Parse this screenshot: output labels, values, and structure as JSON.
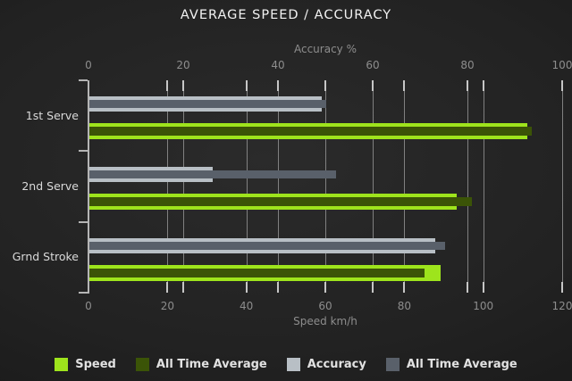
{
  "title": "AVERAGE SPEED / ACCURACY",
  "colors": {
    "background": "#1e1e1e",
    "grid": "#979797",
    "tick": "#c6c6c6",
    "text_muted": "#8d8d8d",
    "text_bright": "#f2f2f2",
    "speed": "#9ee41c",
    "speed_all_time_average": "#3b5407",
    "accuracy": "#b8bfc5",
    "accuracy_all_time_average": "#59606a"
  },
  "chart_data": {
    "type": "bar",
    "orientation": "horizontal",
    "title": "AVERAGE SPEED / ACCURACY",
    "categories": [
      "1st Serve",
      "2nd Serve",
      "Grnd Stroke"
    ],
    "axes": {
      "top": {
        "label": "Accuracy %",
        "min": 0,
        "max": 100,
        "ticks": [
          0,
          20,
          40,
          60,
          80,
          100
        ]
      },
      "bottom": {
        "label": "Speed km/h",
        "min": 0,
        "max": 120,
        "ticks": [
          0,
          20,
          40,
          60,
          80,
          100,
          120
        ]
      }
    },
    "grid": true,
    "legend_position": "bottom",
    "series": [
      {
        "name": "Speed",
        "axis": "bottom",
        "color": "#9ee41c",
        "values": [
          111,
          93,
          89
        ]
      },
      {
        "name": "All Time Average",
        "axis": "bottom",
        "color": "#3b5407",
        "values": [
          112,
          97,
          85
        ]
      },
      {
        "name": "Accuracy",
        "axis": "top",
        "color": "#b8bfc5",
        "values": [
          49,
          26,
          73
        ]
      },
      {
        "name": "All Time Average",
        "axis": "top",
        "color": "#59606a",
        "values": [
          50,
          52,
          75
        ]
      }
    ]
  },
  "legend": {
    "items": [
      {
        "label": "Speed",
        "color": "#9ee41c"
      },
      {
        "label": "All Time Average",
        "color": "#3b5407"
      },
      {
        "label": "Accuracy",
        "color": "#b8bfc5"
      },
      {
        "label": "All Time Average",
        "color": "#59606a"
      }
    ]
  }
}
